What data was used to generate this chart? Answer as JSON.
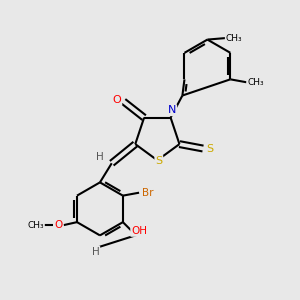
{
  "background_color": "#e8e8e8",
  "bond_color": "#000000",
  "atom_colors": {
    "O": "#ff0000",
    "N": "#0000cd",
    "S": "#ccaa00",
    "Br": "#cc6600",
    "C": "#000000",
    "H": "#555555"
  },
  "figsize": [
    3.0,
    3.0
  ],
  "dpi": 100,
  "xlim": [
    0,
    10
  ],
  "ylim": [
    0,
    10
  ]
}
